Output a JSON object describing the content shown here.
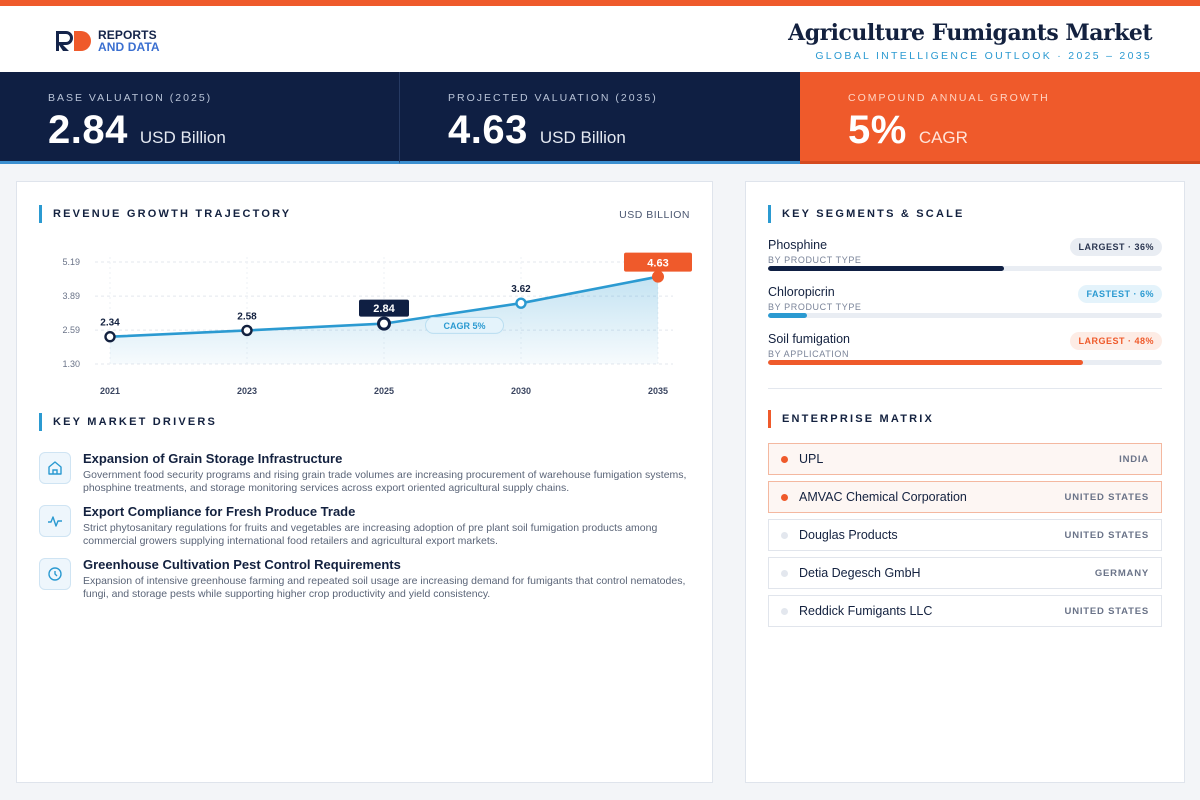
{
  "brand": {
    "line1": "REPORTS",
    "line2": "AND DATA"
  },
  "header": {
    "title": "Agriculture Fumigants Market",
    "subtitle": "GLOBAL INTELLIGENCE OUTLOOK  ·  2025 – 2035"
  },
  "stats": [
    {
      "label": "BASE VALUATION (2025)",
      "value": "2.84",
      "unit": "USD Billion"
    },
    {
      "label": "PROJECTED VALUATION (2035)",
      "value": "4.63",
      "unit": "USD Billion"
    },
    {
      "label": "COMPOUND ANNUAL GROWTH",
      "value": "5%",
      "unit": "CAGR"
    }
  ],
  "revenue": {
    "title": "REVENUE GROWTH TRAJECTORY",
    "unit": "USD BILLION"
  },
  "chart_data": {
    "type": "area",
    "x": [
      "2021",
      "2023",
      "2025",
      "2030",
      "2035"
    ],
    "values": [
      2.34,
      2.58,
      2.84,
      3.62,
      4.63
    ],
    "yticks": [
      "5.19",
      "3.89",
      "2.59",
      "1.30"
    ],
    "ylim": [
      1.3,
      5.19
    ],
    "annotation": "CAGR 5%",
    "highlight": {
      "base_index": 2,
      "final_index": 4
    },
    "colors": {
      "line": "#2b9ad1",
      "base": "#0f1f43",
      "final": "#ef5a2b"
    }
  },
  "drivers": {
    "title": "KEY MARKET DRIVERS",
    "items": [
      {
        "icon": "warehouse-icon",
        "title": "Expansion of Grain Storage Infrastructure",
        "desc": "Government food security programs and rising grain trade volumes are increasing procurement of warehouse fumigation systems, phosphine treatments, and storage monitoring services across export oriented agricultural supply chains."
      },
      {
        "icon": "pulse-icon",
        "title": "Export Compliance for Fresh Produce Trade",
        "desc": "Strict phytosanitary regulations for fruits and vegetables are increasing adoption of pre plant soil fumigation products among commercial growers supplying international food retailers and agricultural export markets."
      },
      {
        "icon": "clock-icon",
        "title": "Greenhouse Cultivation Pest Control Requirements",
        "desc": "Expansion of intensive greenhouse farming and repeated soil usage are increasing demand for fumigants that control nematodes, fungi, and storage pests while supporting higher crop productivity and yield consistency."
      }
    ]
  },
  "segments": {
    "title": "KEY SEGMENTS & SCALE",
    "items": [
      {
        "name": "Phosphine",
        "category": "BY PRODUCT TYPE",
        "badge": "LARGEST · 36%",
        "share": 0.36,
        "color": "#0f1f43"
      },
      {
        "name": "Chloropicrin",
        "category": "BY PRODUCT TYPE",
        "badge": "FASTEST · 6%",
        "share": 0.06,
        "color": "#2b9ad1"
      },
      {
        "name": "Soil fumigation",
        "category": "BY APPLICATION",
        "badge": "LARGEST · 48%",
        "share": 0.48,
        "color": "#ef5a2b"
      }
    ]
  },
  "matrix": {
    "title": "ENTERPRISE MATRIX",
    "items": [
      {
        "name": "UPL",
        "country": "INDIA",
        "highlight": true
      },
      {
        "name": "AMVAC Chemical Corporation",
        "country": "UNITED STATES",
        "highlight": true
      },
      {
        "name": "Douglas Products",
        "country": "UNITED STATES",
        "highlight": false
      },
      {
        "name": "Detia Degesch GmbH",
        "country": "GERMANY",
        "highlight": false
      },
      {
        "name": "Reddick Fumigants LLC",
        "country": "UNITED STATES",
        "highlight": false
      }
    ]
  }
}
